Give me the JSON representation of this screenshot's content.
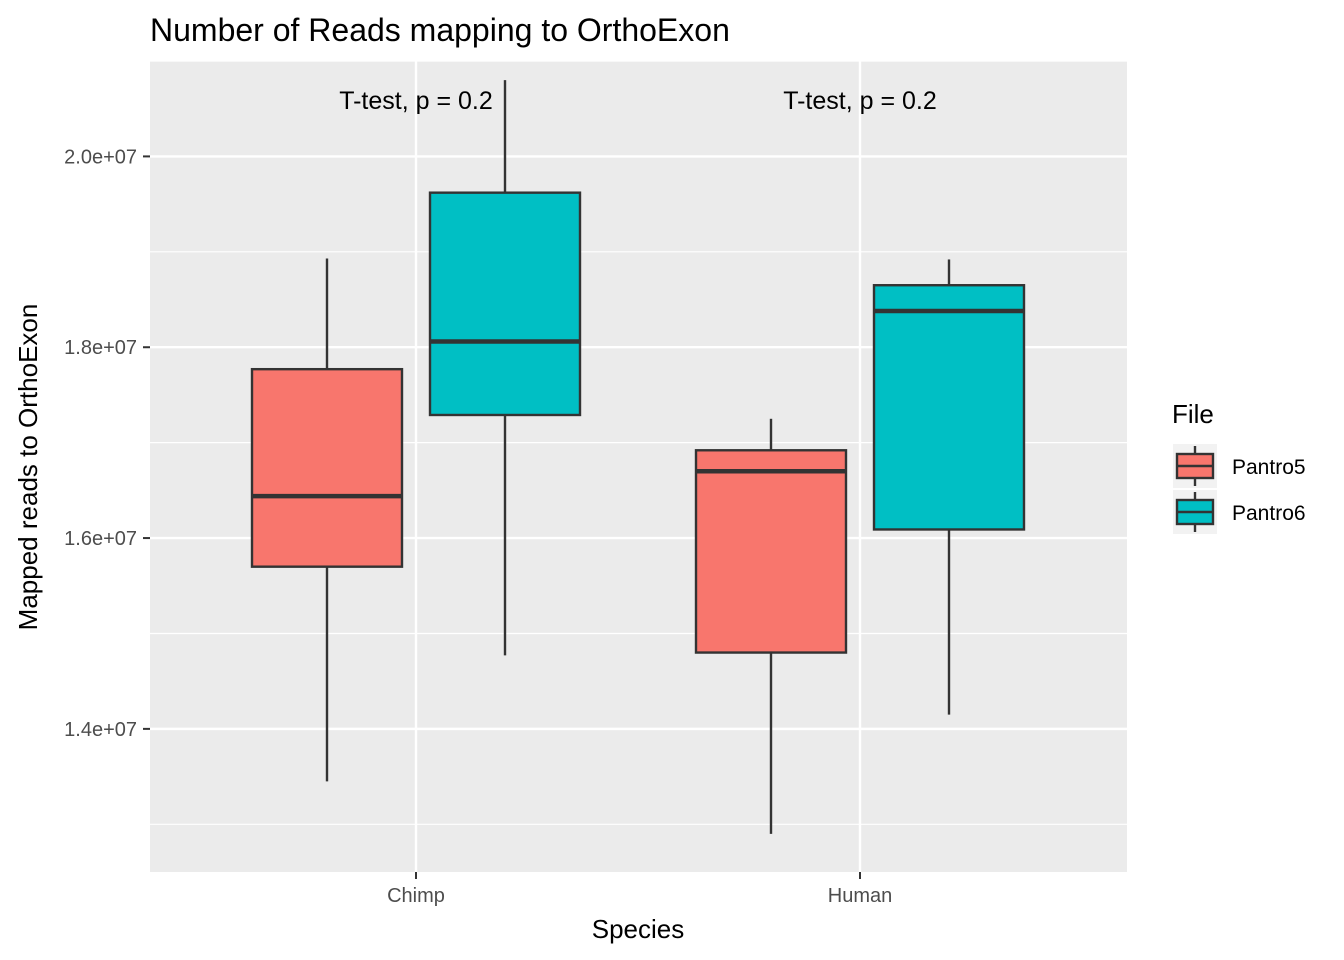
{
  "chart_data": {
    "type": "boxplot",
    "title": "Number of Reads mapping to OrthoExon",
    "xlabel": "Species",
    "ylabel": "Mapped reads to OrthoExon",
    "categories": [
      "Chimp",
      "Human"
    ],
    "y_ticks": [
      14000000,
      16000000,
      18000000,
      20000000
    ],
    "y_tick_labels": [
      "1.4e+07",
      "1.6e+07",
      "1.8e+07",
      "2.0e+07"
    ],
    "ylim": [
      12500000,
      21000000
    ],
    "grid": true,
    "legend": {
      "title": "File",
      "position": "right",
      "entries": [
        {
          "label": "Pantro5",
          "color": "#F8766D"
        },
        {
          "label": "Pantro6",
          "color": "#00BFC4"
        }
      ]
    },
    "annotations": [
      {
        "category": "Chimp",
        "text": "T-test, p = 0.2"
      },
      {
        "category": "Human",
        "text": "T-test, p = 0.2"
      }
    ],
    "series": [
      {
        "name": "Pantro5",
        "color": "#F8766D",
        "boxes": [
          {
            "category": "Chimp",
            "min": 13450000,
            "q1": 15700000,
            "median": 16440000,
            "q3": 17770000,
            "max": 18930000
          },
          {
            "category": "Human",
            "min": 12900000,
            "q1": 14800000,
            "median": 16700000,
            "q3": 16920000,
            "max": 17250000
          }
        ]
      },
      {
        "name": "Pantro6",
        "color": "#00BFC4",
        "boxes": [
          {
            "category": "Chimp",
            "min": 14770000,
            "q1": 17290000,
            "median": 18060000,
            "q3": 19620000,
            "max": 20800000
          },
          {
            "category": "Human",
            "min": 14150000,
            "q1": 16090000,
            "median": 18380000,
            "q3": 18650000,
            "max": 18920000
          }
        ]
      }
    ]
  }
}
